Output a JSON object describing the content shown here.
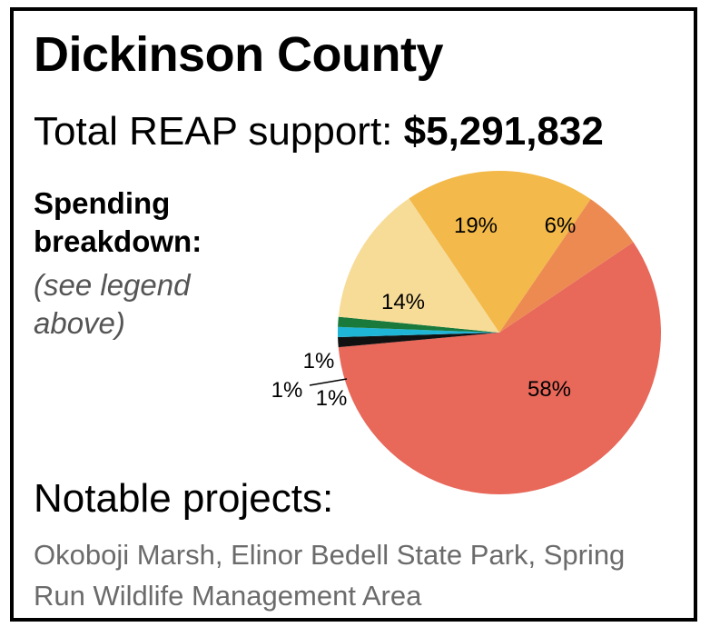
{
  "header": {
    "title": "Dickinson County",
    "total_label": "Total REAP support: ",
    "total_value": "$5,291,832"
  },
  "breakdown": {
    "heading": "Spending breakdown:",
    "note": "(see legend above)"
  },
  "projects": {
    "heading": "Notable projects:",
    "list": "Okoboji Marsh, Elinor Bedell State Park, Spring Run Wildlife Management Area"
  },
  "chart_data": {
    "type": "pie",
    "slices": [
      {
        "label": "58%",
        "value": 58,
        "color": "#e8685a"
      },
      {
        "label": "1%",
        "value": 1,
        "color": "#111111"
      },
      {
        "label": "1%",
        "value": 1,
        "color": "#1fb5d6"
      },
      {
        "label": "1%",
        "value": 1,
        "color": "#1a7a3c"
      },
      {
        "label": "14%",
        "value": 14,
        "color": "#f7dc98"
      },
      {
        "label": "19%",
        "value": 19,
        "color": "#f3b94a"
      },
      {
        "label": "6%",
        "value": 6,
        "color": "#ec8a52"
      }
    ]
  }
}
